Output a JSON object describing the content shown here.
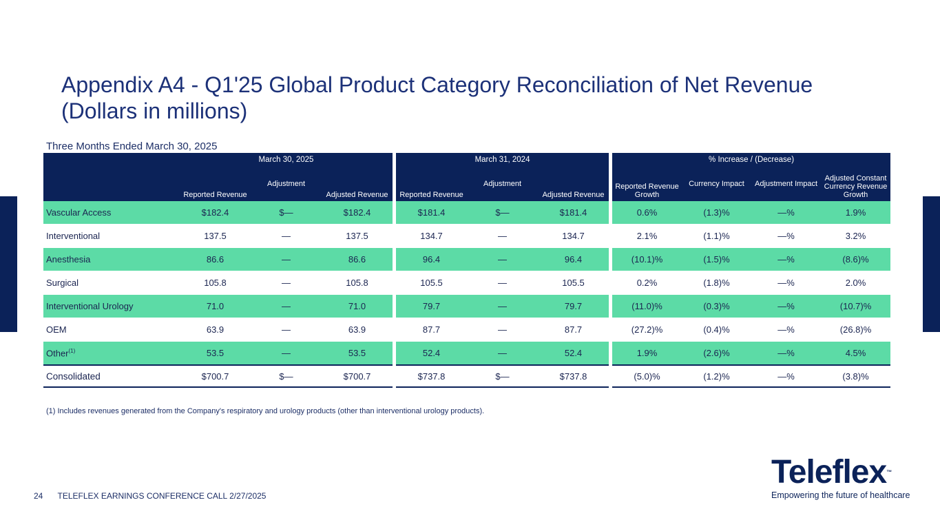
{
  "title_line1": "Appendix A4 - Q1'25 Global Product Category Reconciliation of Net Revenue",
  "title_line2": "(Dollars in millions)",
  "subtitle": "Three Months Ended March 30, 2025",
  "table": {
    "groups": [
      "March 30, 2025",
      "March 31, 2024",
      "% Increase / (Decrease)"
    ],
    "columns": [
      "Reported Revenue",
      "Adjustment",
      "Adjusted Revenue",
      "Reported Revenue",
      "Adjustment",
      "Adjusted Revenue",
      "Reported Revenue Growth",
      "Currency Impact",
      "Adjustment Impact",
      "Adjusted Constant Currency Revenue Growth"
    ],
    "rows": [
      {
        "label": "Vascular Access",
        "values": [
          "$182.4",
          "$—",
          "$182.4",
          "$181.4",
          "$—",
          "$181.4",
          "0.6%",
          "(1.3)%",
          "—%",
          "1.9%"
        ]
      },
      {
        "label": "Interventional",
        "values": [
          "137.5",
          "—",
          "137.5",
          "134.7",
          "—",
          "134.7",
          "2.1%",
          "(1.1)%",
          "—%",
          "3.2%"
        ]
      },
      {
        "label": "Anesthesia",
        "values": [
          "86.6",
          "—",
          "86.6",
          "96.4",
          "—",
          "96.4",
          "(10.1)%",
          "(1.5)%",
          "—%",
          "(8.6)%"
        ]
      },
      {
        "label": "Surgical",
        "values": [
          "105.8",
          "—",
          "105.8",
          "105.5",
          "—",
          "105.5",
          "0.2%",
          "(1.8)%",
          "—%",
          "2.0%"
        ]
      },
      {
        "label": "Interventional Urology",
        "values": [
          "71.0",
          "—",
          "71.0",
          "79.7",
          "—",
          "79.7",
          "(11.0)%",
          "(0.3)%",
          "—%",
          "(10.7)%"
        ]
      },
      {
        "label": "OEM",
        "values": [
          "63.9",
          "—",
          "63.9",
          "87.7",
          "—",
          "87.7",
          "(27.2)%",
          "(0.4)%",
          "—%",
          "(26.8)%"
        ]
      },
      {
        "label": "Other",
        "sup": "(1)",
        "values": [
          "53.5",
          "—",
          "53.5",
          "52.4",
          "—",
          "52.4",
          "1.9%",
          "(2.6)%",
          "—%",
          "4.5%"
        ]
      }
    ],
    "total": {
      "label": "Consolidated",
      "values": [
        "$700.7",
        "$—",
        "$700.7",
        "$737.8",
        "$—",
        "$737.8",
        "(5.0)%",
        "(1.2)%",
        "—%",
        "(3.8)%"
      ]
    }
  },
  "footnote": "(1) Includes revenues generated from the Company's respiratory and urology products (other than interventional urology products).",
  "footer": {
    "page": "24",
    "text": "TELEFLEX EARNINGS CONFERENCE CALL 2/27/2025"
  },
  "logo": {
    "word": "Teleflex",
    "tm": "™",
    "tagline": "Empowering the future of healthcare"
  },
  "colors": {
    "navy": "#0b2259",
    "green": "#5cdba6",
    "title": "#1c3178"
  }
}
